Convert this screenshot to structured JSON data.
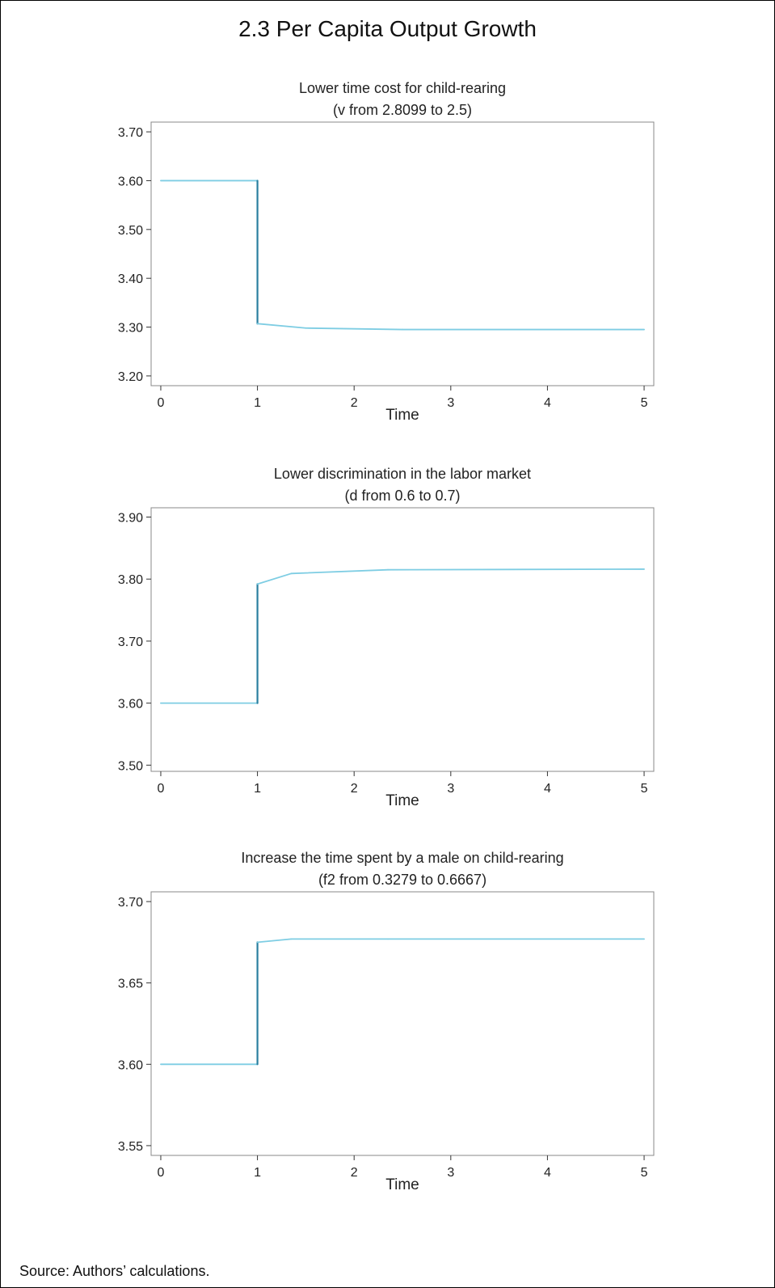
{
  "figure": {
    "title": "2.3  Per Capita Output Growth",
    "source": "Source: Authors’ calculations.",
    "line_color": "#7ecde3",
    "jump_color": "#2a7fa0"
  },
  "chart_data": [
    {
      "type": "line",
      "title": "Lower time cost for child-rearing",
      "subtitle": "(v from 2.8099 to 2.5)",
      "xlabel": "Time",
      "ylabel": "",
      "xlim": [
        -0.1,
        5.1
      ],
      "ylim": [
        3.18,
        3.72
      ],
      "xticks": [
        0,
        1,
        2,
        3,
        4,
        5
      ],
      "yticks": [
        3.2,
        3.3,
        3.4,
        3.5,
        3.6,
        3.7
      ],
      "ytick_labels": [
        "3.20",
        "3.30",
        "3.40",
        "3.50",
        "3.60",
        "3.70"
      ],
      "grid": false,
      "series": [
        {
          "x": [
            0,
            1,
            1,
            1.5,
            2.5,
            5
          ],
          "y": [
            3.6,
            3.6,
            3.307,
            3.298,
            3.295,
            3.295
          ]
        }
      ]
    },
    {
      "type": "line",
      "title": "Lower discrimination in the labor market",
      "subtitle": "(d from 0.6 to 0.7)",
      "xlabel": "Time",
      "ylabel": "",
      "xlim": [
        -0.1,
        5.1
      ],
      "ylim": [
        3.49,
        3.915
      ],
      "xticks": [
        0,
        1,
        2,
        3,
        4,
        5
      ],
      "yticks": [
        3.5,
        3.6,
        3.7,
        3.8,
        3.9
      ],
      "ytick_labels": [
        "3.50",
        "3.60",
        "3.70",
        "3.80",
        "3.90"
      ],
      "grid": false,
      "series": [
        {
          "x": [
            0,
            1,
            1,
            1.35,
            2.35,
            5
          ],
          "y": [
            3.6,
            3.6,
            3.792,
            3.809,
            3.815,
            3.816
          ]
        }
      ]
    },
    {
      "type": "line",
      "title": "Increase the time spent by a male on child-rearing",
      "subtitle": "(f2 from 0.3279 to 0.6667)",
      "xlabel": "Time",
      "ylabel": "",
      "xlim": [
        -0.1,
        5.1
      ],
      "ylim": [
        3.544,
        3.706
      ],
      "xticks": [
        0,
        1,
        2,
        3,
        4,
        5
      ],
      "yticks": [
        3.55,
        3.6,
        3.65,
        3.7
      ],
      "ytick_labels": [
        "3.55",
        "3.60",
        "3.65",
        "3.70"
      ],
      "grid": false,
      "series": [
        {
          "x": [
            0,
            1,
            1,
            1.35,
            2.35,
            5
          ],
          "y": [
            3.6,
            3.6,
            3.675,
            3.677,
            3.677,
            3.677
          ]
        }
      ]
    }
  ]
}
